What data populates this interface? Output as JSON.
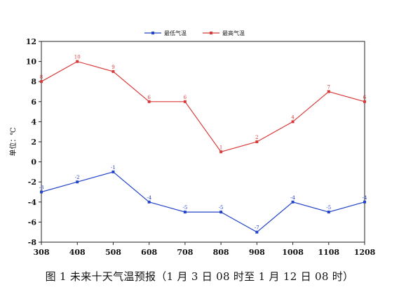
{
  "caption": "图 1  未来十天气温预报（1 月 3 日 08 时至 1 月 12 日 08 时）",
  "chart_data": {
    "type": "line",
    "x": [
      "308",
      "408",
      "508",
      "608",
      "708",
      "808",
      "908",
      "1008",
      "1108",
      "1208"
    ],
    "ylabel": "单位：℃",
    "xlabel": "",
    "ylim": [
      -8,
      12
    ],
    "yticks": [
      -8,
      -6,
      -4,
      -2,
      0,
      2,
      4,
      6,
      8,
      10,
      12
    ],
    "grid": false,
    "legend_position": "top-center",
    "series": [
      {
        "name": "最低气温",
        "color": "#2545c8",
        "values": [
          -3,
          -2,
          -1,
          -4,
          -5,
          -5,
          -7,
          -4,
          -5,
          -4
        ]
      },
      {
        "name": "最高气温",
        "color": "#d83a3a",
        "values": [
          8,
          10,
          9,
          6,
          6,
          1,
          2,
          4,
          7,
          6
        ]
      }
    ]
  }
}
